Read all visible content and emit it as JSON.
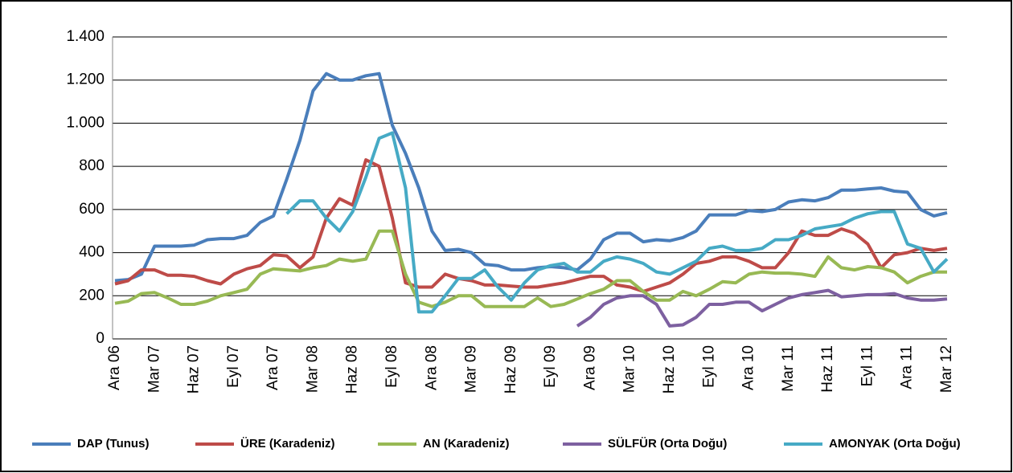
{
  "chart_data": {
    "type": "line",
    "categories": [
      "Ara 06",
      null,
      null,
      "Mar 07",
      null,
      null,
      "Haz 07",
      null,
      null,
      "Eyl 07",
      null,
      null,
      "Ara 07",
      null,
      null,
      "Mar 08",
      null,
      null,
      "Haz 08",
      null,
      null,
      "Eyl 08",
      null,
      null,
      "Ara 08",
      null,
      null,
      "Mar 09",
      null,
      null,
      "Haz 09",
      null,
      null,
      "Eyl 09",
      null,
      null,
      "Ara 09",
      null,
      null,
      "Mar 10",
      null,
      null,
      "Haz 10",
      null,
      null,
      "Eyl 10",
      null,
      null,
      "Ara 10",
      null,
      null,
      "Mar 11",
      null,
      null,
      "Haz 11",
      null,
      null,
      "Eyl 11",
      null,
      null,
      "Ara 11",
      null,
      null,
      "Mar 12"
    ],
    "series": [
      {
        "name": "DAP (Tunus)",
        "color": "#4a7ebb",
        "values": [
          270,
          275,
          300,
          430,
          430,
          430,
          435,
          460,
          465,
          465,
          480,
          540,
          570,
          740,
          920,
          1150,
          1230,
          1200,
          1200,
          1220,
          1230,
          990,
          860,
          700,
          500,
          410,
          415,
          400,
          345,
          340,
          320,
          320,
          330,
          335,
          330,
          320,
          370,
          460,
          490,
          490,
          450,
          460,
          455,
          470,
          500,
          575,
          575,
          575,
          595,
          590,
          600,
          635,
          645,
          640,
          655,
          690,
          690,
          695,
          700,
          685,
          680,
          600,
          570,
          585
        ]
      },
      {
        "name": "ÜRE (Karadeniz)",
        "color": "#be4b48",
        "values": [
          255,
          270,
          320,
          320,
          295,
          295,
          290,
          270,
          255,
          300,
          325,
          340,
          390,
          385,
          330,
          380,
          560,
          650,
          620,
          830,
          800,
          560,
          260,
          240,
          240,
          300,
          280,
          270,
          250,
          250,
          245,
          240,
          240,
          250,
          260,
          275,
          290,
          290,
          250,
          240,
          220,
          240,
          260,
          300,
          350,
          360,
          380,
          380,
          360,
          330,
          330,
          400,
          500,
          480,
          480,
          510,
          490,
          440,
          330,
          390,
          400,
          420,
          410,
          420
        ]
      },
      {
        "name": "AN (Karadeniz)",
        "color": "#98b954",
        "values": [
          165,
          175,
          210,
          215,
          190,
          160,
          160,
          175,
          200,
          215,
          230,
          300,
          325,
          320,
          315,
          330,
          340,
          370,
          360,
          370,
          500,
          500,
          300,
          170,
          150,
          170,
          200,
          200,
          150,
          150,
          150,
          150,
          190,
          150,
          160,
          185,
          210,
          230,
          270,
          270,
          220,
          180,
          180,
          220,
          200,
          230,
          265,
          260,
          300,
          310,
          305,
          305,
          300,
          290,
          380,
          330,
          320,
          335,
          330,
          310,
          260,
          290,
          310,
          310
        ]
      },
      {
        "name": "SÜLFÜR (Orta Doğu)",
        "color": "#7d60a0",
        "values": [
          null,
          null,
          null,
          null,
          null,
          null,
          null,
          null,
          null,
          null,
          null,
          null,
          null,
          null,
          null,
          null,
          null,
          null,
          null,
          null,
          null,
          null,
          null,
          null,
          null,
          null,
          null,
          null,
          null,
          null,
          null,
          null,
          null,
          null,
          null,
          60,
          100,
          160,
          190,
          200,
          200,
          160,
          60,
          65,
          100,
          160,
          160,
          170,
          170,
          130,
          160,
          190,
          205,
          215,
          225,
          195,
          200,
          205,
          205,
          210,
          190,
          180,
          180,
          185
        ]
      },
      {
        "name": "AMONYAK (Orta Doğu)",
        "color": "#46aac5",
        "values": [
          null,
          null,
          null,
          null,
          null,
          null,
          null,
          null,
          null,
          null,
          null,
          null,
          null,
          580,
          640,
          640,
          560,
          500,
          590,
          750,
          930,
          955,
          700,
          125,
          125,
          200,
          280,
          280,
          320,
          240,
          180,
          260,
          320,
          340,
          350,
          310,
          310,
          360,
          380,
          370,
          350,
          310,
          300,
          330,
          360,
          420,
          430,
          410,
          410,
          420,
          460,
          460,
          480,
          510,
          520,
          530,
          560,
          580,
          590,
          590,
          440,
          420,
          310,
          370
        ]
      }
    ],
    "ylim": [
      0,
      1400
    ],
    "yticks": [
      0,
      200,
      400,
      600,
      800,
      {
        "value": 1000,
        "label": "1.000"
      },
      {
        "value": 1200,
        "label": "1.200"
      },
      {
        "value": 1400,
        "label": "1.400"
      }
    ],
    "grid": true
  }
}
